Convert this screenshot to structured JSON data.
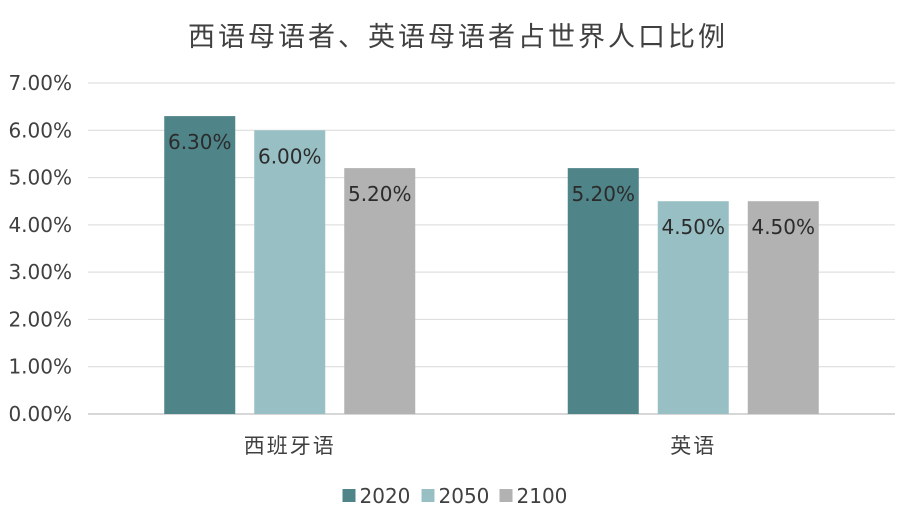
{
  "chart_data": {
    "type": "bar",
    "title": "西语母语者、英语母语者占世界人口比例",
    "xlabel": "",
    "ylabel": "",
    "categories": [
      "西班牙语",
      "英语"
    ],
    "series": [
      {
        "name": "2020",
        "values": [
          6.3,
          5.2
        ],
        "labels": [
          "6.30%",
          "5.20%"
        ],
        "color": "#4f8489"
      },
      {
        "name": "2050",
        "values": [
          6.0,
          4.5
        ],
        "labels": [
          "6.00%",
          "4.50%"
        ],
        "color": "#98c0c4"
      },
      {
        "name": "2100",
        "values": [
          5.2,
          4.5
        ],
        "labels": [
          "5.20%",
          "4.50%"
        ],
        "color": "#b2b2b2"
      }
    ],
    "ylim": [
      0,
      7
    ],
    "yticks": [
      0,
      1,
      2,
      3,
      4,
      5,
      6,
      7
    ],
    "ytick_labels": [
      "0.00%",
      "1.00%",
      "2.00%",
      "3.00%",
      "4.00%",
      "5.00%",
      "6.00%",
      "7.00%"
    ],
    "grid": true,
    "legend_position": "bottom"
  }
}
